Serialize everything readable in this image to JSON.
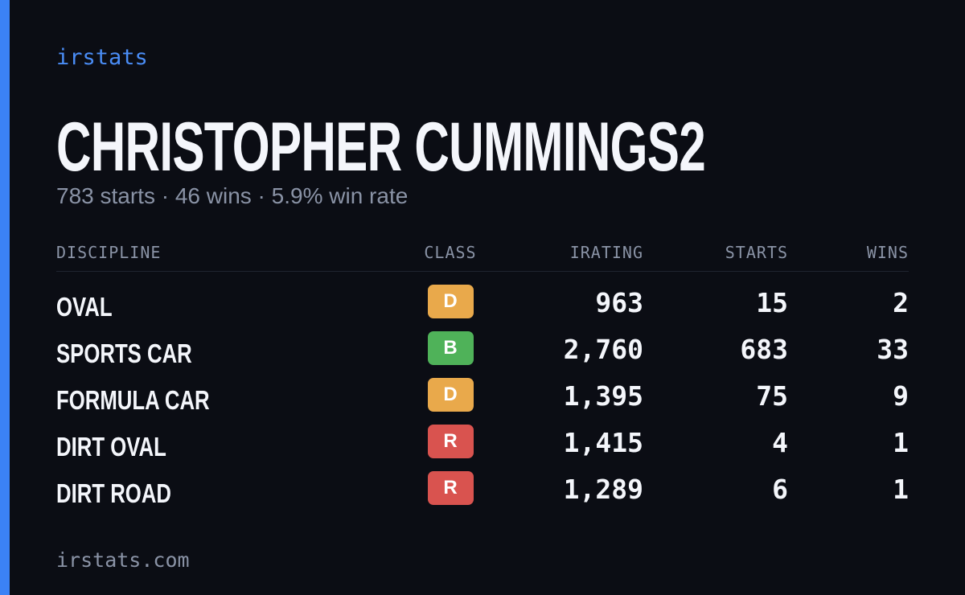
{
  "brand": "irstats",
  "title": "CHRISTOPHER CUMMINGS2",
  "subtitle": "783 starts · 46 wins · 5.9% win rate",
  "table": {
    "headers": [
      "DISCIPLINE",
      "CLASS",
      "IRATING",
      "STARTS",
      "WINS"
    ],
    "rows": [
      {
        "discipline": "OVAL",
        "class": {
          "label": "D",
          "color": "#e9a94b"
        },
        "irating": "963",
        "starts": "15",
        "wins": "2"
      },
      {
        "discipline": "SPORTS CAR",
        "class": {
          "label": "B",
          "color": "#4fb259"
        },
        "irating": "2,760",
        "starts": "683",
        "wins": "33"
      },
      {
        "discipline": "FORMULA CAR",
        "class": {
          "label": "D",
          "color": "#e9a94b"
        },
        "irating": "1,395",
        "starts": "75",
        "wins": "9"
      },
      {
        "discipline": "DIRT OVAL",
        "class": {
          "label": "R",
          "color": "#d9534f"
        },
        "irating": "1,415",
        "starts": "4",
        "wins": "1"
      },
      {
        "discipline": "DIRT ROAD",
        "class": {
          "label": "R",
          "color": "#d9534f"
        },
        "irating": "1,289",
        "starts": "6",
        "wins": "1"
      }
    ]
  },
  "footer": "irstats.com"
}
